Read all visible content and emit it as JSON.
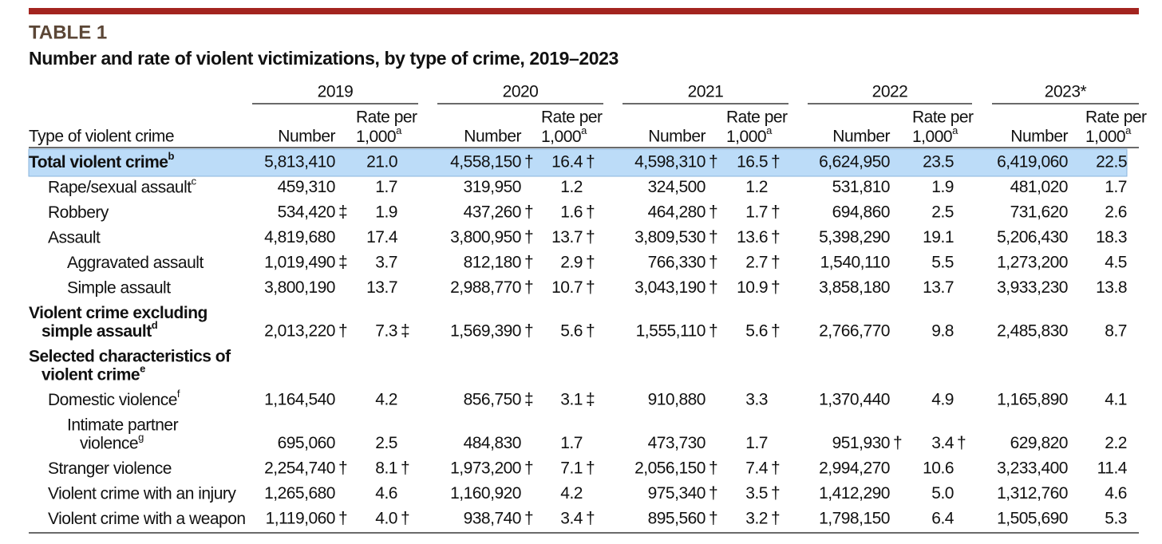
{
  "header": {
    "label": "TABLE 1",
    "title": "Number and rate of violent victimizations, by type of crime, 2019–2023"
  },
  "table": {
    "years": [
      "2019",
      "2020",
      "2021",
      "2022",
      "2023*"
    ],
    "columns": {
      "type": "Type of violent crime",
      "number": "Number",
      "rate_line1": "Rate per",
      "rate_line2": "1,000",
      "rate_note": "a"
    },
    "rows": [
      {
        "label": [
          "Total violent crime"
        ],
        "note": "b",
        "level": 0,
        "highlight": true,
        "cells": [
          "5,813,410",
          "21.0",
          {
            "text": "4,558,150",
            "flag": "†"
          },
          {
            "text": "16.4",
            "flag": "†"
          },
          {
            "text": "4,598,310",
            "flag": "†"
          },
          {
            "text": "16.5",
            "flag": "†"
          },
          "6,624,950",
          "23.5",
          "6,419,060",
          "22.5"
        ]
      },
      {
        "label": [
          "Rape/sexual assault"
        ],
        "note": "c",
        "level": 1,
        "cells": [
          "459,310",
          "1.7",
          "319,950",
          "1.2",
          "324,500",
          "1.2",
          "531,810",
          "1.9",
          "481,020",
          "1.7"
        ]
      },
      {
        "label": [
          "Robbery"
        ],
        "level": 1,
        "cells": [
          {
            "text": "534,420",
            "flag": "‡"
          },
          "1.9",
          {
            "text": "437,260",
            "flag": "†"
          },
          {
            "text": "1.6",
            "flag": "†"
          },
          {
            "text": "464,280",
            "flag": "†"
          },
          {
            "text": "1.7",
            "flag": "†"
          },
          "694,860",
          "2.5",
          "731,620",
          "2.6"
        ]
      },
      {
        "label": [
          "Assault"
        ],
        "level": 1,
        "cells": [
          "4,819,680",
          "17.4",
          {
            "text": "3,800,950",
            "flag": "†"
          },
          {
            "text": "13.7",
            "flag": "†"
          },
          {
            "text": "3,809,530",
            "flag": "†"
          },
          {
            "text": "13.6",
            "flag": "†"
          },
          "5,398,290",
          "19.1",
          "5,206,430",
          "18.3"
        ]
      },
      {
        "label": [
          "Aggravated assault"
        ],
        "level": 2,
        "cells": [
          {
            "text": "1,019,490",
            "flag": "‡"
          },
          "3.7",
          {
            "text": "812,180",
            "flag": "†"
          },
          {
            "text": "2.9",
            "flag": "†"
          },
          {
            "text": "766,330",
            "flag": "†"
          },
          {
            "text": "2.7",
            "flag": "†"
          },
          "1,540,110",
          "5.5",
          "1,273,200",
          "4.5"
        ]
      },
      {
        "label": [
          "Simple assault"
        ],
        "level": 2,
        "cells": [
          "3,800,190",
          "13.7",
          {
            "text": "2,988,770",
            "flag": "†"
          },
          {
            "text": "10.7",
            "flag": "†"
          },
          {
            "text": "3,043,190",
            "flag": "†"
          },
          {
            "text": "10.9",
            "flag": "†"
          },
          "3,858,180",
          "13.7",
          "3,933,230",
          "13.8"
        ]
      },
      {
        "label": [
          "Violent crime excluding",
          "simple assault"
        ],
        "note": "d",
        "level": 0,
        "cells": [
          {
            "text": "2,013,220",
            "flag": "†"
          },
          {
            "text": "7.3",
            "flag": "‡"
          },
          {
            "text": "1,569,390",
            "flag": "†"
          },
          {
            "text": "5.6",
            "flag": "†"
          },
          {
            "text": "1,555,110",
            "flag": "†"
          },
          {
            "text": "5.6",
            "flag": "†"
          },
          "2,766,770",
          "9.8",
          "2,485,830",
          "8.7"
        ]
      },
      {
        "label": [
          "Selected characteristics of",
          "violent crime"
        ],
        "note": "e",
        "level": 0,
        "cells": []
      },
      {
        "label": [
          "Domestic violence"
        ],
        "note": "f",
        "level": 1,
        "cells": [
          "1,164,540",
          "4.2",
          {
            "text": "856,750",
            "flag": "‡"
          },
          {
            "text": "3.1",
            "flag": "‡"
          },
          "910,880",
          "3.3",
          "1,370,440",
          "4.9",
          "1,165,890",
          "4.1"
        ]
      },
      {
        "label": [
          "Intimate partner",
          "violence"
        ],
        "note": "g",
        "level": 2,
        "cells": [
          "695,060",
          "2.5",
          "484,830",
          "1.7",
          "473,730",
          "1.7",
          {
            "text": "951,930",
            "flag": "†"
          },
          {
            "text": "3.4",
            "flag": "†"
          },
          "629,820",
          "2.2"
        ]
      },
      {
        "label": [
          "Stranger violence"
        ],
        "level": 1,
        "cells": [
          {
            "text": "2,254,740",
            "flag": "†"
          },
          {
            "text": "8.1",
            "flag": "†"
          },
          {
            "text": "1,973,200",
            "flag": "†"
          },
          {
            "text": "7.1",
            "flag": "†"
          },
          {
            "text": "2,056,150",
            "flag": "†"
          },
          {
            "text": "7.4",
            "flag": "†"
          },
          "2,994,270",
          "10.6",
          "3,233,400",
          "11.4"
        ]
      },
      {
        "label": [
          "Violent crime with an injury"
        ],
        "level": 1,
        "cells": [
          "1,265,680",
          "4.6",
          "1,160,920",
          "4.2",
          {
            "text": "975,340",
            "flag": "†"
          },
          {
            "text": "3.5",
            "flag": "†"
          },
          "1,412,290",
          "5.0",
          "1,312,760",
          "4.6"
        ]
      },
      {
        "label": [
          "Violent crime with a weapon"
        ],
        "level": 1,
        "cells": [
          {
            "text": "1,119,060",
            "flag": "†"
          },
          {
            "text": "4.0",
            "flag": "†"
          },
          {
            "text": "938,740",
            "flag": "†"
          },
          {
            "text": "3.4",
            "flag": "†"
          },
          {
            "text": "895,560",
            "flag": "†"
          },
          {
            "text": "3.2",
            "flag": "†"
          },
          "1,798,150",
          "6.4",
          "1,505,690",
          "5.3"
        ]
      }
    ]
  }
}
